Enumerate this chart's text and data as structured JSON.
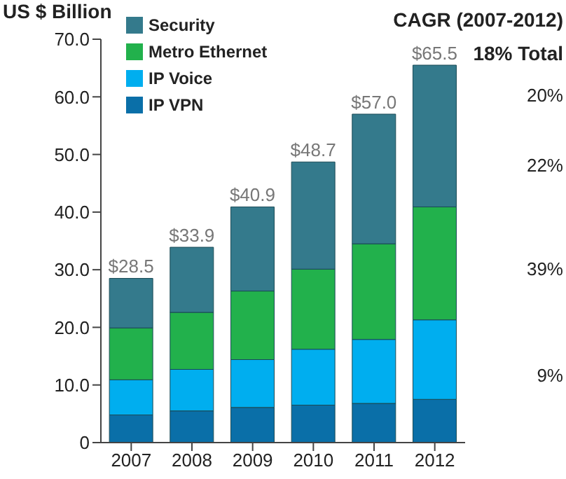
{
  "chart_data": {
    "type": "bar",
    "stacked": true,
    "ylabel": "US $ Billion",
    "categories": [
      "2007",
      "2008",
      "2009",
      "2010",
      "2011",
      "2012"
    ],
    "series": [
      {
        "name": "IP VPN",
        "color": "#0a6fa8",
        "values": [
          4.8,
          5.5,
          6.1,
          6.5,
          6.8,
          7.5
        ]
      },
      {
        "name": "IP Voice",
        "color": "#00aeef",
        "values": [
          6.1,
          7.2,
          8.3,
          9.7,
          11.1,
          13.8
        ]
      },
      {
        "name": "Metro Ethernet",
        "color": "#22b14c",
        "values": [
          9.0,
          9.9,
          11.9,
          13.9,
          16.6,
          19.6
        ]
      },
      {
        "name": "Security",
        "color": "#347a8c",
        "values": [
          8.6,
          11.3,
          14.6,
          18.6,
          22.5,
          24.6
        ]
      }
    ],
    "totals": [
      "$28.5",
      "$33.9",
      "$40.9",
      "$48.7",
      "$57.0",
      "$65.5"
    ],
    "ylim": [
      0,
      70
    ],
    "yticks": [
      0,
      {
        "value": 10,
        "label": "10.0"
      },
      {
        "value": 20,
        "label": "20.0"
      },
      {
        "value": 30,
        "label": "30.0"
      },
      {
        "value": 40,
        "label": "40.0"
      },
      {
        "value": 50,
        "label": "50.0"
      },
      {
        "value": 60,
        "label": "60.0"
      },
      {
        "value": 70,
        "label": "70.0"
      }
    ],
    "grid": false,
    "legend": "top left",
    "annotations": [
      "CAGR (2007-2012)",
      "18% Total",
      "20%",
      "22%",
      "39%",
      "9%"
    ]
  }
}
